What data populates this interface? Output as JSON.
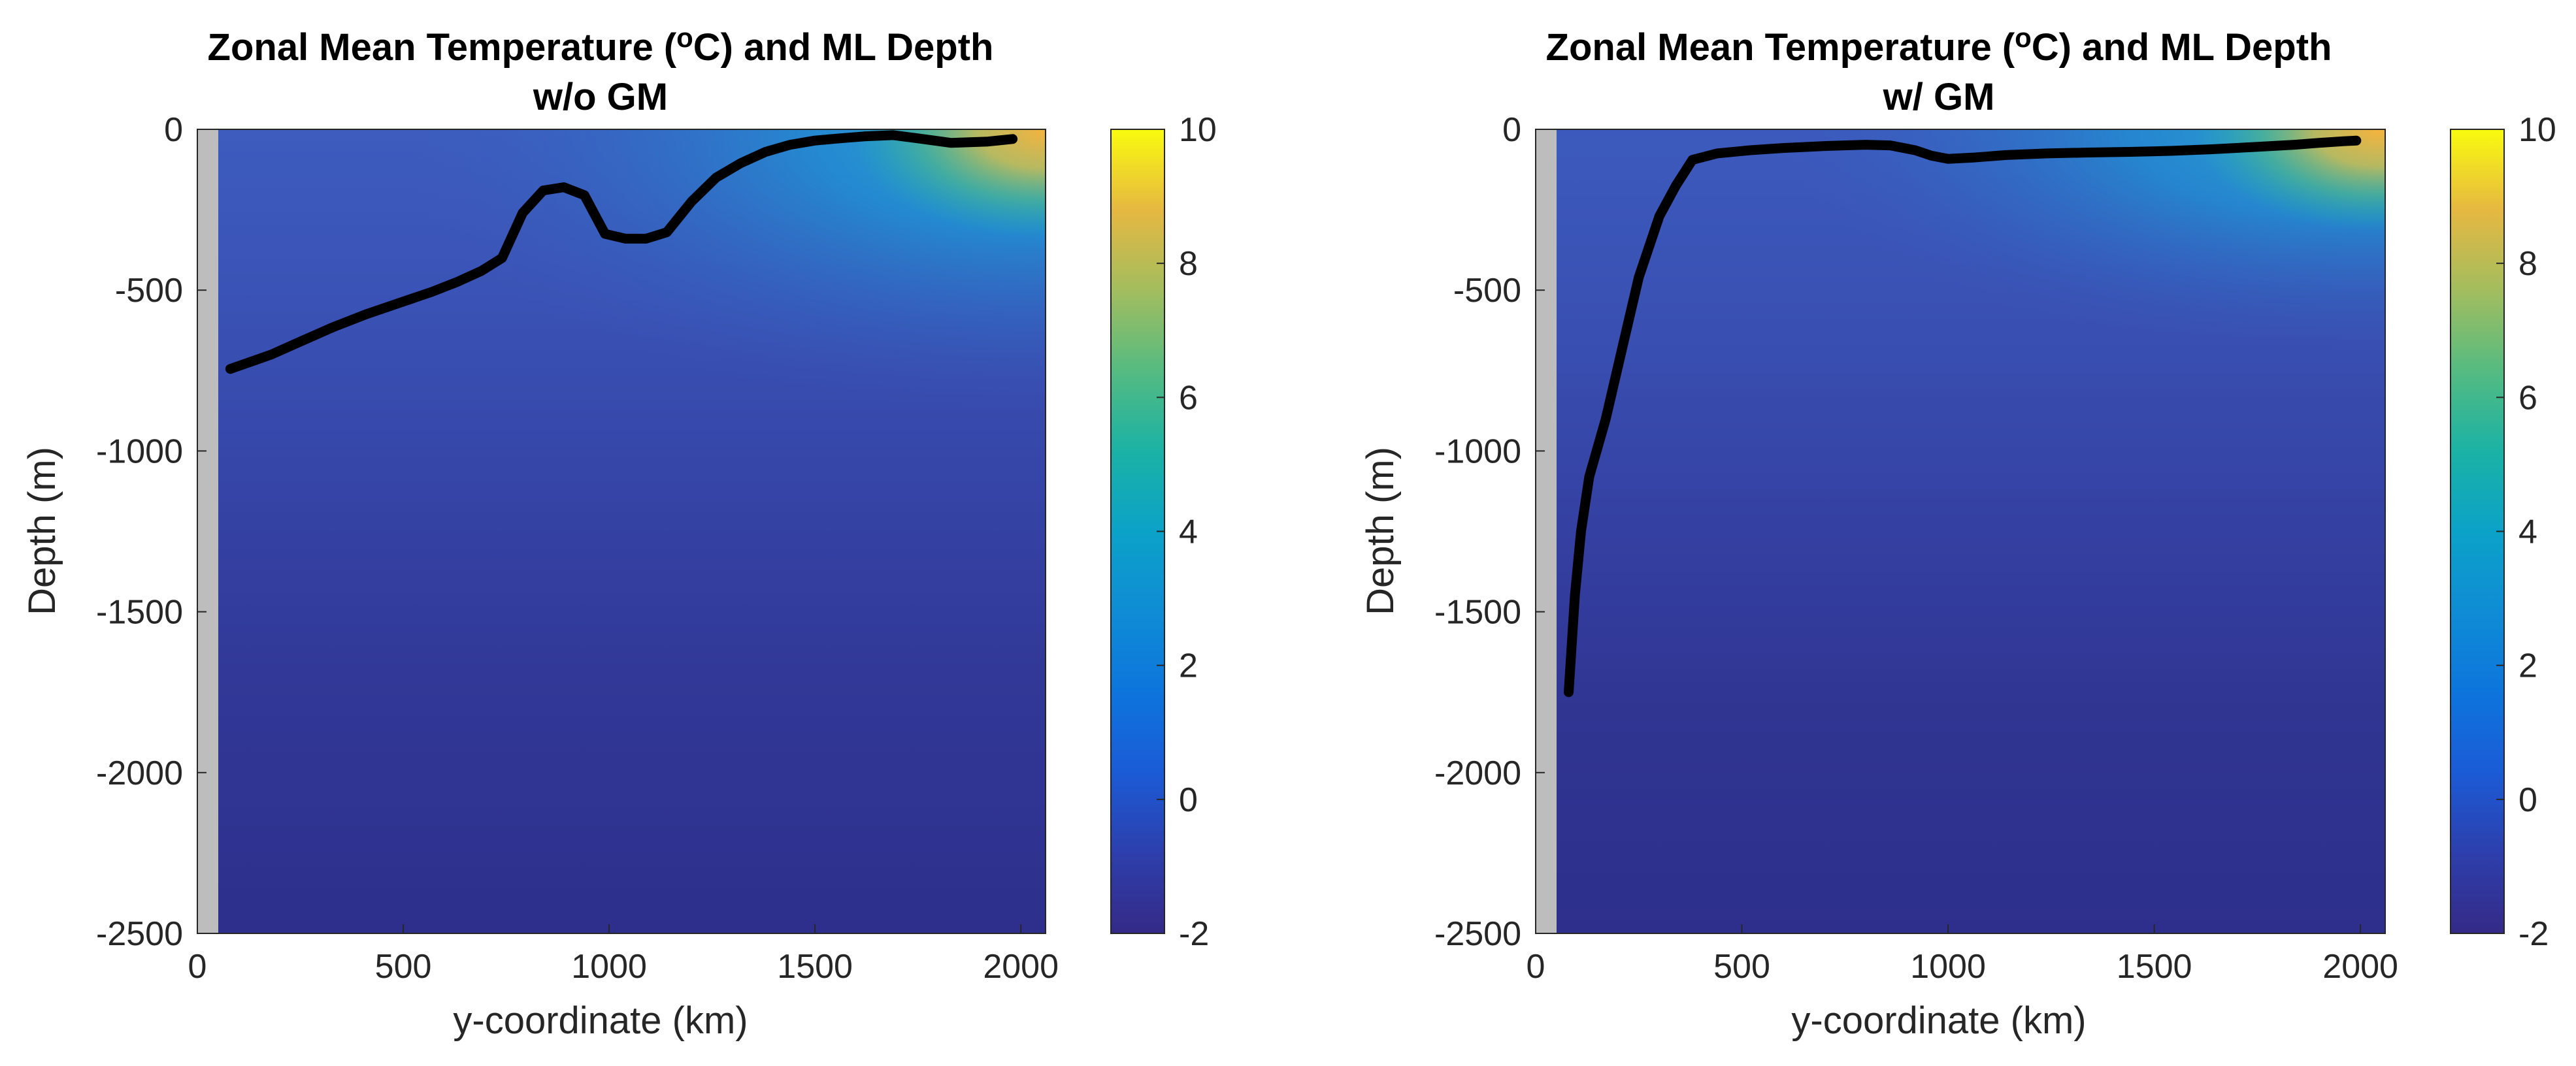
{
  "chart_data": [
    {
      "type": "heatmap",
      "panel": "left",
      "title_line1_pre": "Zonal Mean Temperature (",
      "title_sup": "o",
      "title_line1_post": "C) and ML Depth",
      "title_line2": "w/o GM",
      "xlabel": "y-coordinate (km)",
      "ylabel": "Depth (m)",
      "xlim": [
        0,
        2060
      ],
      "ylim": [
        -2500,
        0
      ],
      "xticks": [
        0,
        500,
        1000,
        1500,
        2000
      ],
      "yticks": [
        0,
        -500,
        -1000,
        -1500,
        -2000,
        -2500
      ],
      "colorbar": {
        "range": [
          -2,
          10
        ],
        "ticks": [
          10,
          8,
          6,
          4,
          2,
          0,
          -2
        ]
      },
      "masked_region_x": [
        0,
        50
      ],
      "ml_depth": {
        "x": [
          80,
          180,
          250,
          330,
          410,
          490,
          570,
          630,
          690,
          740,
          790,
          840,
          890,
          940,
          990,
          1040,
          1090,
          1140,
          1200,
          1260,
          1320,
          1380,
          1440,
          1500,
          1560,
          1620,
          1690,
          1750,
          1830,
          1920,
          1980
        ],
        "y": [
          -745,
          -700,
          -660,
          -615,
          -575,
          -540,
          -505,
          -475,
          -440,
          -400,
          -260,
          -190,
          -180,
          -205,
          -325,
          -340,
          -340,
          -320,
          -225,
          -150,
          -105,
          -70,
          -48,
          -35,
          -28,
          -22,
          -18,
          -28,
          -42,
          -38,
          -30
        ]
      }
    },
    {
      "type": "heatmap",
      "panel": "right",
      "title_line1_pre": "Zonal Mean Temperature (",
      "title_sup": "o",
      "title_line1_post": "C) and ML Depth",
      "title_line2": "w/ GM",
      "xlabel": "y-coordinate (km)",
      "ylabel": "Depth (m)",
      "xlim": [
        0,
        2060
      ],
      "ylim": [
        -2500,
        0
      ],
      "xticks": [
        0,
        500,
        1000,
        1500,
        2000
      ],
      "yticks": [
        0,
        -500,
        -1000,
        -1500,
        -2000,
        -2500
      ],
      "colorbar": {
        "range": [
          -2,
          10
        ],
        "ticks": [
          10,
          8,
          6,
          4,
          2,
          0,
          -2
        ]
      },
      "masked_region_x": [
        0,
        50
      ],
      "ml_depth": {
        "x": [
          80,
          95,
          110,
          130,
          170,
          210,
          250,
          300,
          340,
          380,
          440,
          520,
          600,
          700,
          800,
          860,
          920,
          960,
          1000,
          1060,
          1140,
          1240,
          1340,
          1440,
          1540,
          1640,
          1740,
          1840,
          1900,
          1960,
          1990
        ],
        "y": [
          -1750,
          -1450,
          -1250,
          -1080,
          -900,
          -680,
          -460,
          -270,
          -175,
          -95,
          -75,
          -65,
          -58,
          -52,
          -48,
          -50,
          -65,
          -82,
          -92,
          -88,
          -80,
          -75,
          -72,
          -70,
          -67,
          -62,
          -55,
          -48,
          -42,
          -37,
          -35
        ]
      }
    }
  ]
}
